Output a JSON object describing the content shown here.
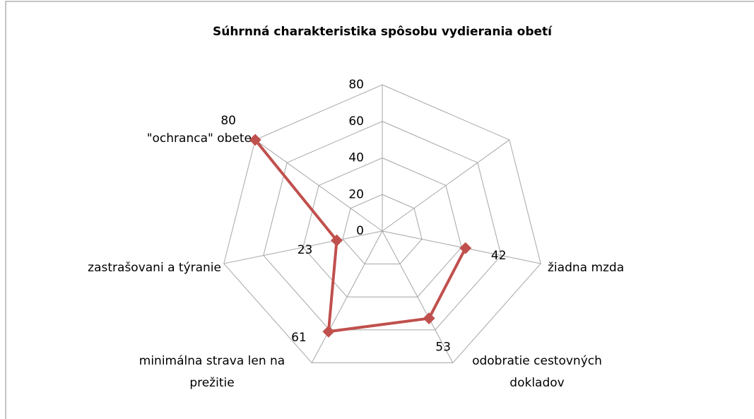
{
  "chart_data": {
    "type": "radar",
    "title": "Súhrnná charakteristika spôsobu vydierania obetí",
    "categories": [
      null,
      null,
      "žiadna mzda",
      "odobratie cestovných dokladov",
      "minimálna strava len na prežitie",
      "zastrašovani a týranie",
      "\"ochranca\" obete"
    ],
    "values": [
      null,
      null,
      42,
      53,
      61,
      23,
      80
    ],
    "color": "#c0504d",
    "ylim": [
      0,
      80
    ],
    "yticks": [
      0,
      20,
      40,
      60,
      80
    ],
    "grid": true
  }
}
